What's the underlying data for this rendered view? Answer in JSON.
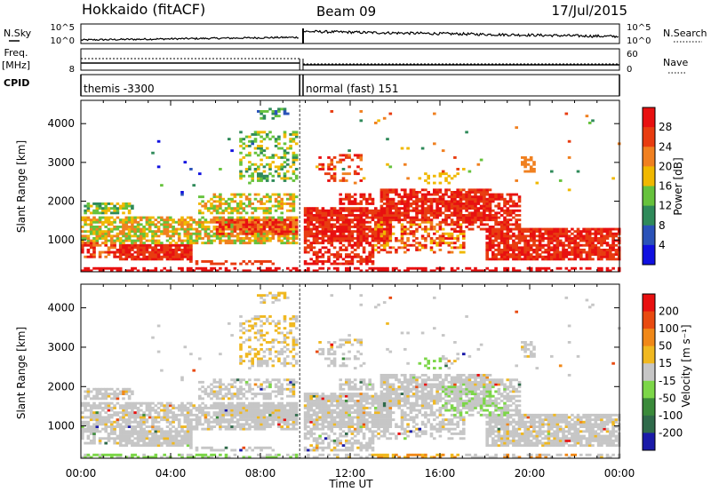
{
  "header": {
    "station": "Hokkaido (fitACF)",
    "beam": "Beam 09",
    "date": "17/Jul/2015"
  },
  "panel_labels": {
    "nsky": "N.Sky",
    "freq_line1": "Freq.",
    "freq_line2": "[MHz]",
    "cpid": "CPID",
    "nsearch": "N.Search",
    "nave": "Nave"
  },
  "cpid_blocks": [
    {
      "start_hour": 0,
      "end_hour": 9.75,
      "label": "themis -3300"
    },
    {
      "start_hour": 9.9,
      "end_hour": 24,
      "label": "normal (fast) 151"
    }
  ],
  "x_axis": {
    "title": "Time UT",
    "ticks": [
      {
        "hour": 0,
        "label": "00:00"
      },
      {
        "hour": 4,
        "label": "04:00"
      },
      {
        "hour": 8,
        "label": "08:00"
      },
      {
        "hour": 12,
        "label": "12:00"
      },
      {
        "hour": 16,
        "label": "16:00"
      },
      {
        "hour": 20,
        "label": "20:00"
      },
      {
        "hour": 24,
        "label": "00:00"
      }
    ],
    "range": [
      0,
      24
    ]
  },
  "y_axis": {
    "title": "Slant Range [km]",
    "ticks": [
      {
        "km": 1000,
        "label": "1000"
      },
      {
        "km": 2000,
        "label": "2000"
      },
      {
        "km": 3000,
        "label": "3000"
      },
      {
        "km": 4000,
        "label": "4000"
      }
    ],
    "range": [
      180,
      4600
    ]
  },
  "nsky_axis": {
    "left_top": "10^5",
    "left_bottom": "10^0",
    "right_top": "10^5",
    "right_bottom": "10^0"
  },
  "freq_axis": {
    "left_bottom": "8",
    "right_top": "60",
    "right_bottom": "0"
  },
  "chart_data": [
    {
      "type": "heatmap",
      "panel": "power",
      "colorbar_label": "Power [dB]",
      "colorbar_ticks": [
        "4",
        "8",
        "12",
        "16",
        "20",
        "24",
        "28"
      ],
      "colors": [
        "#1010e0",
        "#2a52b8",
        "#2f8a5a",
        "#66c23c",
        "#f0b800",
        "#f08020",
        "#e83c10",
        "#e81010"
      ],
      "data_gap_hours": [
        9.75,
        9.9
      ],
      "note_regions": [
        {
          "t0": 0.2,
          "t1": 2.2,
          "r0": 1600,
          "r1": 1950,
          "level": 3
        },
        {
          "t0": 0,
          "t1": 9.6,
          "r0": 900,
          "r1": 1500,
          "level": 4
        },
        {
          "t0": 1.8,
          "t1": 4.8,
          "r0": 450,
          "r1": 850,
          "level": 7
        },
        {
          "t0": 6.2,
          "t1": 9.6,
          "r0": 1100,
          "r1": 1500,
          "level": 6
        },
        {
          "t0": 10.0,
          "t1": 13.5,
          "r0": 900,
          "r1": 1500,
          "level": 7
        },
        {
          "t0": 13.5,
          "t1": 18.0,
          "r0": 1400,
          "r1": 2200,
          "level": 7
        },
        {
          "t0": 18.0,
          "t1": 24.0,
          "r0": 500,
          "r1": 1200,
          "level": 7
        }
      ]
    },
    {
      "type": "heatmap",
      "panel": "velocity",
      "colorbar_label": "Velocity [m s⁻¹]",
      "colorbar_ticks": [
        "200",
        "100",
        "50",
        "15",
        "-15",
        "-50",
        "-100",
        "-200"
      ],
      "colors": [
        "#1a1aa8",
        "#2f6a4a",
        "#3a8a3a",
        "#7cd648",
        "#c6c6c6",
        "#f0b820",
        "#f08818",
        "#e84a10",
        "#e81010"
      ],
      "data_gap_hours": [
        9.75,
        9.9
      ]
    }
  ]
}
